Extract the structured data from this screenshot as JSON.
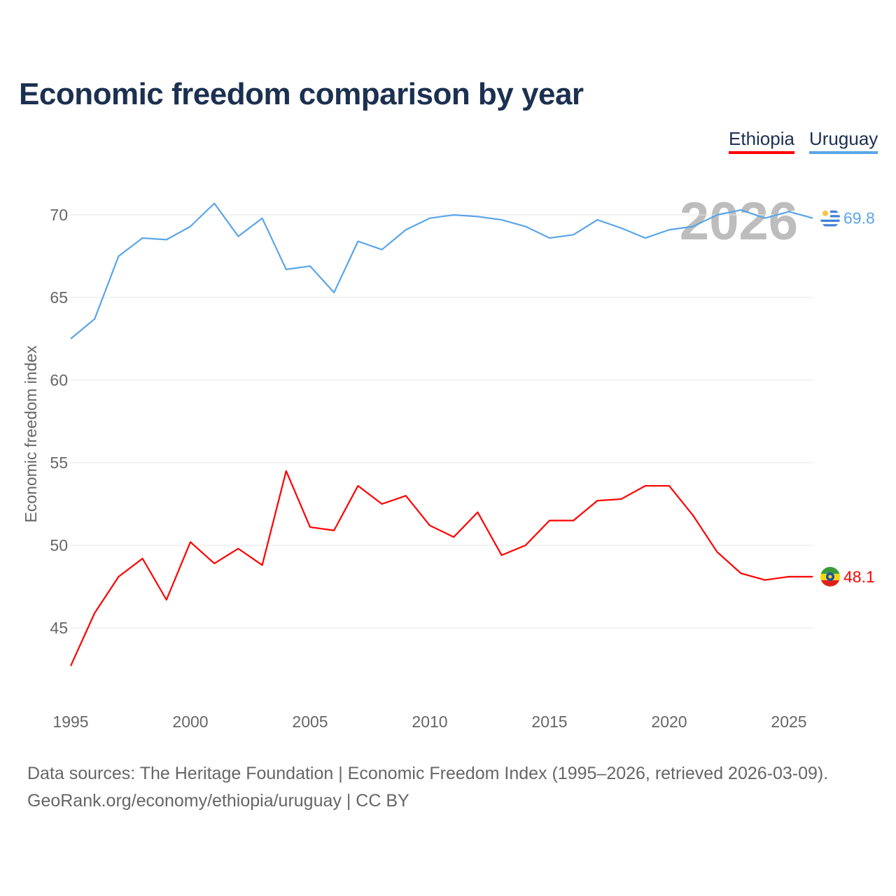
{
  "title": "Economic freedom comparison by year",
  "legend": [
    {
      "name": "Ethiopia",
      "color": "#ff0000"
    },
    {
      "name": "Uruguay",
      "color": "#5aa5e8"
    }
  ],
  "year_watermark": "2026",
  "footer": {
    "line1": "Data sources: The Heritage Foundation | Economic Freedom Index (1995–2026, retrieved 2026-03-09).",
    "line2": "GeoRank.org/economy/ethiopia/uruguay | CC BY"
  },
  "chart_data": {
    "type": "line",
    "title": "Economic freedom comparison by year",
    "xlabel": "",
    "ylabel": "Economic freedom index",
    "x": [
      1995,
      1996,
      1997,
      1998,
      1999,
      2000,
      2001,
      2002,
      2003,
      2004,
      2005,
      2006,
      2007,
      2008,
      2009,
      2010,
      2011,
      2012,
      2013,
      2014,
      2015,
      2016,
      2017,
      2018,
      2019,
      2020,
      2021,
      2022,
      2023,
      2024,
      2025,
      2026
    ],
    "xlim": [
      1995,
      2026
    ],
    "ylim": [
      41,
      73
    ],
    "xticks": [
      1995,
      2000,
      2005,
      2010,
      2015,
      2020,
      2025
    ],
    "yticks": [
      45,
      50,
      55,
      60,
      65,
      70
    ],
    "grid": true,
    "legend_position": "top-right",
    "series": [
      {
        "name": "Ethiopia",
        "color": "#ff0000",
        "end_label": "48.1",
        "values": [
          42.7,
          45.9,
          48.1,
          49.2,
          46.7,
          50.2,
          48.9,
          49.8,
          48.8,
          54.5,
          51.1,
          50.9,
          53.6,
          52.5,
          53.0,
          51.2,
          50.5,
          52.0,
          49.4,
          50.0,
          51.5,
          51.5,
          52.7,
          52.8,
          53.6,
          53.6,
          51.8,
          49.6,
          48.3,
          47.9,
          48.1,
          48.1
        ]
      },
      {
        "name": "Uruguay",
        "color": "#5aa5e8",
        "end_label": "69.8",
        "values": [
          62.5,
          63.7,
          67.5,
          68.6,
          68.5,
          69.3,
          70.7,
          68.7,
          69.8,
          66.7,
          66.9,
          65.3,
          68.4,
          67.9,
          69.1,
          69.8,
          70.0,
          69.9,
          69.7,
          69.3,
          68.6,
          68.8,
          69.7,
          69.2,
          68.6,
          69.1,
          69.3,
          70.0,
          70.3,
          69.8,
          70.2,
          69.8
        ]
      }
    ]
  }
}
